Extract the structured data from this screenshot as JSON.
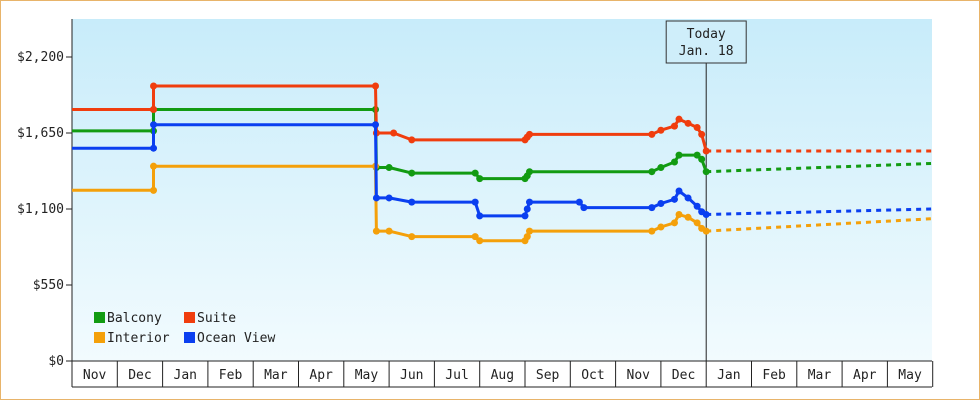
{
  "chart_data": {
    "type": "line",
    "title": "",
    "xlabel": "",
    "ylabel": "",
    "ylim": [
      0,
      2475
    ],
    "yticks": [
      0,
      550,
      1100,
      1650,
      2200
    ],
    "ytick_labels": [
      "$0",
      "$550",
      "$1,100",
      "$1,650",
      "$2,200"
    ],
    "categories": [
      "Nov",
      "Dec",
      "Jan",
      "Feb",
      "Mar",
      "Apr",
      "May",
      "Jun",
      "Jul",
      "Aug",
      "Sep",
      "Oct",
      "Nov",
      "Dec",
      "Jan",
      "Feb",
      "Mar",
      "Apr",
      "May"
    ],
    "grid": false,
    "legend_position": "bottom-left",
    "background": {
      "top": "#c8ecfa",
      "bottom": "#f2fbfe"
    },
    "today": {
      "x": 14.0,
      "label_line1": "Today",
      "label_line2": "Jan. 18"
    },
    "series": [
      {
        "name": "Balcony",
        "color": "#129b12",
        "points": [
          [
            0,
            1665
          ],
          [
            1.8,
            1665
          ],
          [
            1.8,
            1820
          ],
          [
            6.7,
            1820
          ],
          [
            6.72,
            1400
          ],
          [
            7.0,
            1400
          ],
          [
            7.5,
            1360
          ],
          [
            8.9,
            1360
          ],
          [
            9.0,
            1320
          ],
          [
            10.0,
            1320
          ],
          [
            10.05,
            1340
          ],
          [
            10.1,
            1370
          ],
          [
            12.8,
            1370
          ],
          [
            13.0,
            1400
          ],
          [
            13.3,
            1440
          ],
          [
            13.4,
            1490
          ],
          [
            13.8,
            1490
          ],
          [
            13.9,
            1460
          ],
          [
            14.0,
            1370
          ]
        ],
        "forecast": [
          [
            14.0,
            1370
          ],
          [
            19.0,
            1430
          ]
        ]
      },
      {
        "name": "Suite",
        "color": "#f03d0e",
        "points": [
          [
            0,
            1820
          ],
          [
            1.8,
            1820
          ],
          [
            1.8,
            1990
          ],
          [
            6.7,
            1990
          ],
          [
            6.72,
            1650
          ],
          [
            7.1,
            1650
          ],
          [
            7.5,
            1600
          ],
          [
            10.0,
            1600
          ],
          [
            10.05,
            1620
          ],
          [
            10.1,
            1640
          ],
          [
            12.8,
            1640
          ],
          [
            13.0,
            1670
          ],
          [
            13.3,
            1700
          ],
          [
            13.4,
            1750
          ],
          [
            13.6,
            1720
          ],
          [
            13.8,
            1690
          ],
          [
            13.9,
            1640
          ],
          [
            14.0,
            1520
          ]
        ],
        "forecast": [
          [
            14.0,
            1520
          ],
          [
            19.0,
            1520
          ]
        ]
      },
      {
        "name": "Interior",
        "color": "#f4a00a",
        "points": [
          [
            0,
            1235
          ],
          [
            1.8,
            1235
          ],
          [
            1.8,
            1410
          ],
          [
            6.7,
            1410
          ],
          [
            6.72,
            940
          ],
          [
            7.0,
            940
          ],
          [
            7.5,
            900
          ],
          [
            8.9,
            900
          ],
          [
            9.0,
            870
          ],
          [
            10.0,
            870
          ],
          [
            10.05,
            900
          ],
          [
            10.1,
            940
          ],
          [
            12.8,
            940
          ],
          [
            13.0,
            970
          ],
          [
            13.3,
            1000
          ],
          [
            13.4,
            1060
          ],
          [
            13.6,
            1040
          ],
          [
            13.8,
            1000
          ],
          [
            13.9,
            960
          ],
          [
            14.0,
            940
          ]
        ],
        "forecast": [
          [
            14.0,
            940
          ],
          [
            19.0,
            1030
          ]
        ]
      },
      {
        "name": "Ocean View",
        "color": "#0a3ff0",
        "points": [
          [
            0,
            1540
          ],
          [
            1.8,
            1540
          ],
          [
            1.8,
            1710
          ],
          [
            6.7,
            1710
          ],
          [
            6.72,
            1180
          ],
          [
            7.0,
            1180
          ],
          [
            7.5,
            1150
          ],
          [
            8.9,
            1150
          ],
          [
            9.0,
            1050
          ],
          [
            10.0,
            1050
          ],
          [
            10.05,
            1100
          ],
          [
            10.1,
            1150
          ],
          [
            11.2,
            1150
          ],
          [
            11.3,
            1110
          ],
          [
            12.8,
            1110
          ],
          [
            13.0,
            1140
          ],
          [
            13.3,
            1170
          ],
          [
            13.4,
            1230
          ],
          [
            13.6,
            1180
          ],
          [
            13.8,
            1120
          ],
          [
            13.9,
            1080
          ],
          [
            14.0,
            1060
          ]
        ],
        "forecast": [
          [
            14.0,
            1060
          ],
          [
            19.0,
            1100
          ]
        ]
      }
    ]
  }
}
